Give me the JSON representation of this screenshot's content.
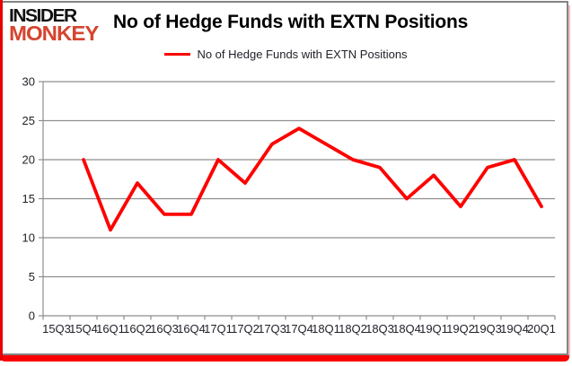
{
  "logo": {
    "line1": "INSIDER",
    "line2": "MONKEY"
  },
  "header": {
    "title": "No of Hedge Funds with EXTN Positions"
  },
  "legend": {
    "label": "No of Hedge Funds with EXTN Positions"
  },
  "colors": {
    "series": "#fe0000",
    "accent_red": "#e60000",
    "bottom_bar_red": "#fa0000",
    "logo_red": "#d5452f",
    "grid": "#8e8e8e",
    "text": "#1f1f28",
    "frame_gray": "#848484",
    "shadow_pink": "#f2bcc0"
  },
  "chart_data": {
    "type": "line",
    "title": "No of Hedge Funds with EXTN Positions",
    "xlabel": "",
    "ylabel": "",
    "categories": [
      "15Q3",
      "15Q4",
      "16Q1",
      "16Q2",
      "16Q3",
      "16Q4",
      "17Q1",
      "17Q2",
      "17Q3",
      "17Q4",
      "18Q1",
      "18Q2",
      "18Q3",
      "18Q4",
      "19Q1",
      "19Q2",
      "19Q3",
      "19Q4",
      "20Q1"
    ],
    "series": [
      {
        "name": "No of Hedge Funds with EXTN Positions",
        "values": [
          null,
          20,
          11,
          17,
          13,
          13,
          20,
          17,
          22,
          24,
          22,
          20,
          19,
          15,
          18,
          14,
          19,
          20,
          14
        ]
      }
    ],
    "ylim": [
      0,
      30
    ],
    "yticks": [
      0,
      5,
      10,
      15,
      20,
      25,
      30
    ],
    "grid": true,
    "legend_position": "top-center",
    "note": "first category 15Q3 has no data point; line begins at 15Q4"
  }
}
